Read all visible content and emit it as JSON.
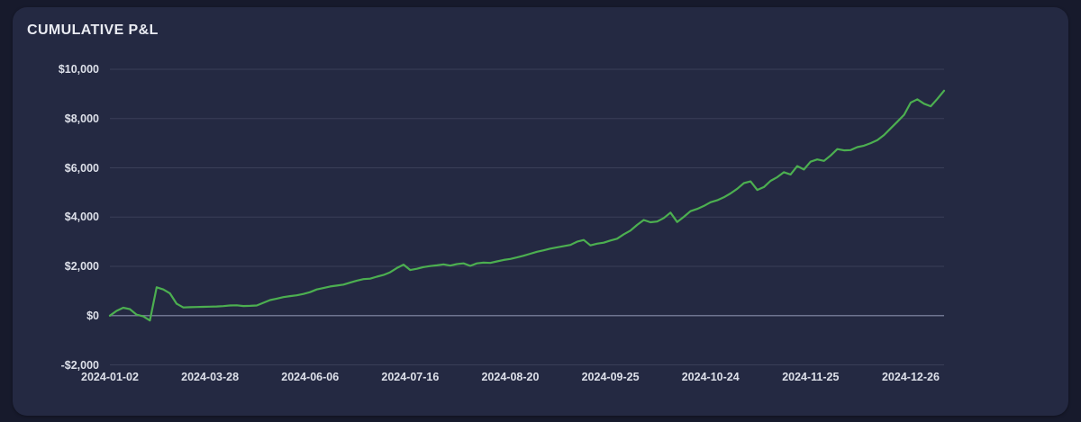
{
  "card": {
    "title": "CUMULATIVE P&L"
  },
  "chart_data": {
    "type": "line",
    "title": "CUMULATIVE P&L",
    "legend": false,
    "grid": true,
    "background": "#242942",
    "line_color": "#4caf50",
    "zero_line_color": "#6e7490",
    "gridline_color": "#3a3f58",
    "label_color": "#dde0e9",
    "ylim": [
      -2000,
      10000
    ],
    "y_ticks": [
      {
        "label": "$10,000",
        "value": 10000
      },
      {
        "label": "$8,000",
        "value": 8000
      },
      {
        "label": "$6,000",
        "value": 6000
      },
      {
        "label": "$4,000",
        "value": 4000
      },
      {
        "label": "$2,000",
        "value": 2000
      },
      {
        "label": "$0",
        "value": 0
      },
      {
        "label": "-$2,000",
        "value": -2000
      }
    ],
    "x_tick_labels": [
      "2024-01-02",
      "2024-03-28",
      "2024-06-06",
      "2024-07-16",
      "2024-08-20",
      "2024-09-25",
      "2024-10-24",
      "2024-11-25",
      "2024-12-26"
    ],
    "x_tick_every": 15,
    "series": [
      {
        "name": "Cumulative P&L",
        "values": [
          0,
          190,
          320,
          260,
          40,
          -30,
          -200,
          1150,
          1060,
          900,
          480,
          330,
          340,
          350,
          355,
          365,
          370,
          385,
          410,
          420,
          390,
          395,
          410,
          520,
          630,
          690,
          750,
          790,
          825,
          880,
          950,
          1060,
          1120,
          1180,
          1220,
          1260,
          1340,
          1420,
          1480,
          1500,
          1580,
          1650,
          1760,
          1930,
          2070,
          1850,
          1900,
          1970,
          2010,
          2040,
          2080,
          2030,
          2090,
          2120,
          2020,
          2120,
          2150,
          2140,
          2200,
          2260,
          2300,
          2360,
          2430,
          2510,
          2590,
          2650,
          2720,
          2770,
          2820,
          2870,
          3000,
          3070,
          2850,
          2920,
          2960,
          3050,
          3120,
          3300,
          3450,
          3680,
          3880,
          3790,
          3820,
          3960,
          4180,
          3800,
          4010,
          4240,
          4330,
          4450,
          4600,
          4680,
          4800,
          4960,
          5150,
          5380,
          5450,
          5100,
          5220,
          5470,
          5620,
          5820,
          5730,
          6070,
          5930,
          6250,
          6340,
          6280,
          6500,
          6760,
          6710,
          6720,
          6840,
          6900,
          7000,
          7120,
          7330,
          7600,
          7870,
          8150,
          8650,
          8780,
          8600,
          8500,
          8800,
          9130
        ]
      }
    ]
  }
}
